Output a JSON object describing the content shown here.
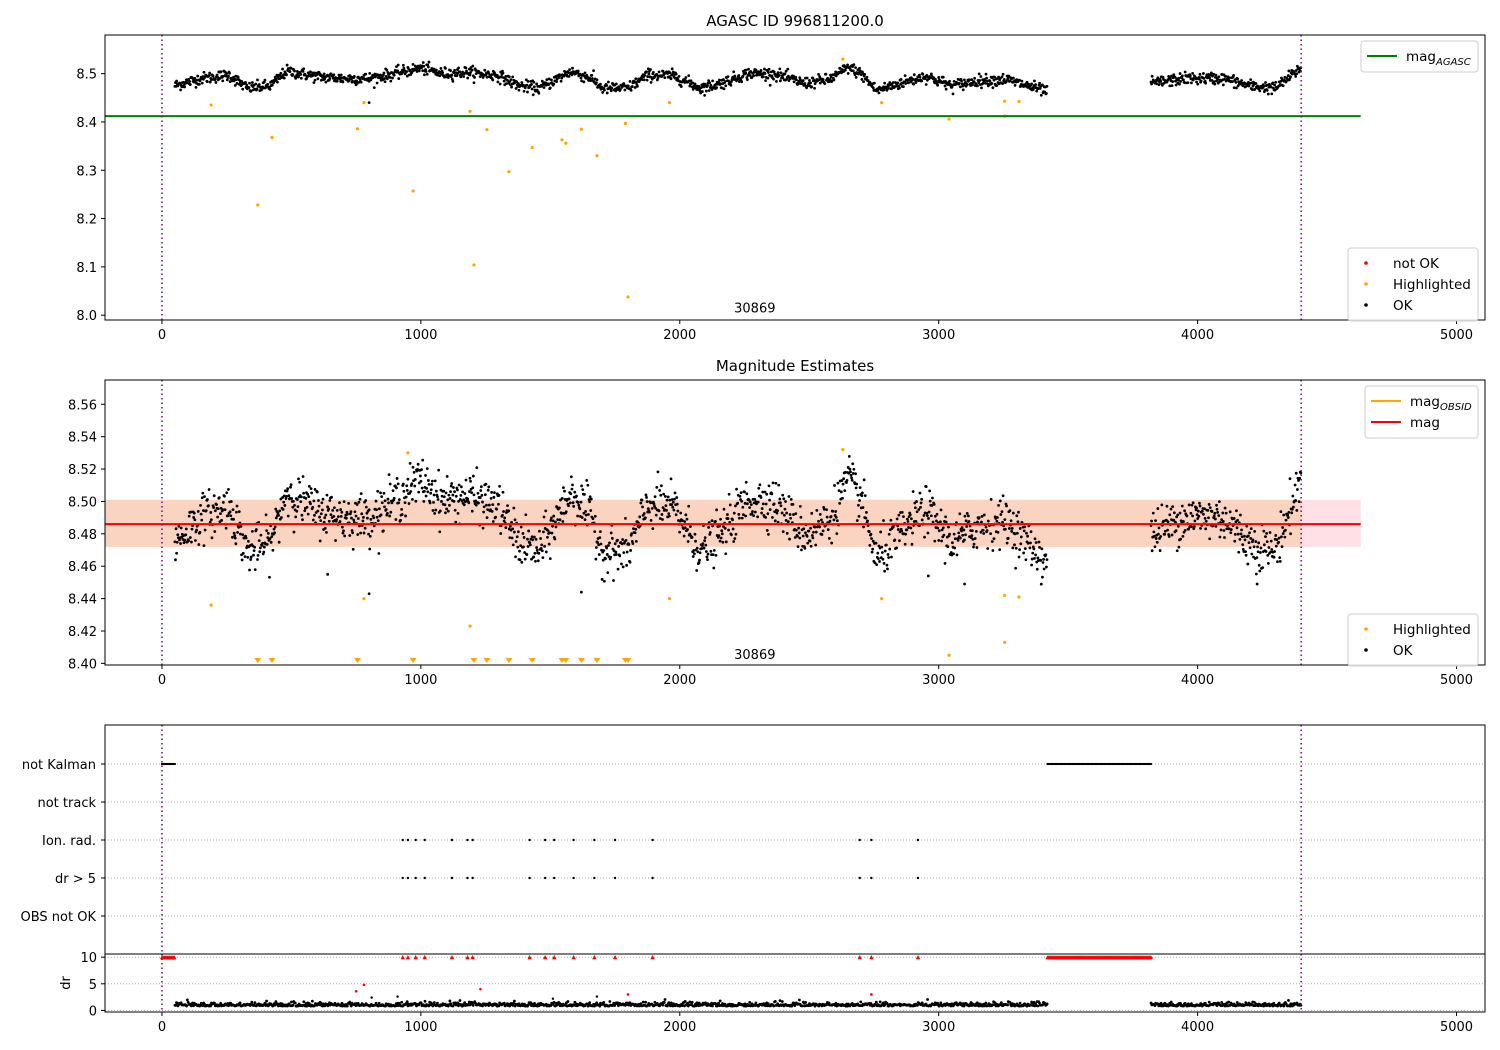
{
  "chart_data": [
    {
      "type": "scatter",
      "title": "AGASC ID 996811200.0",
      "xlim": [
        -220,
        5110
      ],
      "ylim": [
        7.99,
        8.58
      ],
      "xticks": [
        0,
        1000,
        2000,
        3000,
        4000,
        5000
      ],
      "xtick_labels": [
        "0",
        "1000",
        "2000",
        "3000",
        "4000",
        "5000"
      ],
      "yticks": [
        8.0,
        8.1,
        8.2,
        8.3,
        8.4,
        8.5
      ],
      "ytick_labels": [
        "8.0",
        "8.1",
        "8.2",
        "8.3",
        "8.4",
        "8.5"
      ],
      "annotation": {
        "text": "30869",
        "x": 2210,
        "y": 8.01
      },
      "vlines": [
        0,
        4400
      ],
      "hline": {
        "name": "mag_AGASC",
        "y": 8.412,
        "x_range": [
          -220,
          4630
        ],
        "color": "#008000"
      },
      "legend_upper": {
        "placement": "top-right",
        "entries": [
          {
            "label": "mag",
            "subscript": "AGASC",
            "color": "#008000",
            "kind": "line"
          }
        ]
      },
      "legend_lower": {
        "placement": "bottom-right",
        "entries": [
          {
            "label": "not OK",
            "color": "#ff0000",
            "kind": "dot"
          },
          {
            "label": "Highlighted",
            "color": "#ffa500",
            "kind": "dot"
          },
          {
            "label": "OK",
            "color": "#000000",
            "kind": "dot"
          }
        ]
      },
      "highlighted_points": [
        [
          190,
          8.435
        ],
        [
          370,
          8.228
        ],
        [
          425,
          8.368
        ],
        [
          755,
          8.386
        ],
        [
          780,
          8.44
        ],
        [
          970,
          8.257
        ],
        [
          1190,
          8.422
        ],
        [
          1205,
          8.104
        ],
        [
          1255,
          8.384
        ],
        [
          1340,
          8.297
        ],
        [
          1430,
          8.347
        ],
        [
          1545,
          8.363
        ],
        [
          1560,
          8.356
        ],
        [
          1620,
          8.385
        ],
        [
          1680,
          8.33
        ],
        [
          1790,
          8.397
        ],
        [
          1800,
          8.038
        ],
        [
          1960,
          8.44
        ],
        [
          2630,
          8.53
        ],
        [
          2780,
          8.44
        ],
        [
          3040,
          8.406
        ],
        [
          3255,
          8.443
        ],
        [
          3310,
          8.442
        ],
        [
          3255,
          8.412
        ]
      ],
      "ok_extra_points": [
        [
          800,
          8.44
        ]
      ],
      "ok_series": {
        "segments": [
          [
            50,
            3420
          ],
          [
            3820,
            4400
          ]
        ],
        "control_points": [
          [
            40,
            8.474
          ],
          [
            150,
            8.49
          ],
          [
            260,
            8.497
          ],
          [
            330,
            8.47
          ],
          [
            420,
            8.475
          ],
          [
            480,
            8.505
          ],
          [
            600,
            8.494
          ],
          [
            700,
            8.49
          ],
          [
            800,
            8.49
          ],
          [
            900,
            8.5
          ],
          [
            1000,
            8.512
          ],
          [
            1080,
            8.5
          ],
          [
            1180,
            8.503
          ],
          [
            1300,
            8.496
          ],
          [
            1380,
            8.475
          ],
          [
            1460,
            8.47
          ],
          [
            1580,
            8.505
          ],
          [
            1660,
            8.49
          ],
          [
            1700,
            8.47
          ],
          [
            1800,
            8.47
          ],
          [
            1880,
            8.498
          ],
          [
            1980,
            8.495
          ],
          [
            2080,
            8.47
          ],
          [
            2160,
            8.48
          ],
          [
            2260,
            8.5
          ],
          [
            2360,
            8.5
          ],
          [
            2480,
            8.48
          ],
          [
            2580,
            8.488
          ],
          [
            2650,
            8.513
          ],
          [
            2700,
            8.5
          ],
          [
            2760,
            8.465
          ],
          [
            2850,
            8.48
          ],
          [
            2950,
            8.495
          ],
          [
            3050,
            8.475
          ],
          [
            3150,
            8.485
          ],
          [
            3260,
            8.488
          ],
          [
            3420,
            8.463
          ],
          [
            3820,
            8.48
          ],
          [
            3950,
            8.49
          ],
          [
            4100,
            8.49
          ],
          [
            4200,
            8.475
          ],
          [
            4300,
            8.47
          ],
          [
            4400,
            8.512
          ]
        ],
        "noise": 0.006
      }
    },
    {
      "type": "scatter",
      "title": "Magnitude Estimates",
      "xlim": [
        -220,
        5110
      ],
      "ylim": [
        8.399,
        8.575
      ],
      "xticks": [
        0,
        1000,
        2000,
        3000,
        4000,
        5000
      ],
      "xtick_labels": [
        "0",
        "1000",
        "2000",
        "3000",
        "4000",
        "5000"
      ],
      "yticks": [
        8.4,
        8.42,
        8.44,
        8.46,
        8.48,
        8.5,
        8.52,
        8.54,
        8.56
      ],
      "ytick_labels": [
        "8.40",
        "8.42",
        "8.44",
        "8.46",
        "8.48",
        "8.50",
        "8.52",
        "8.54",
        "8.56"
      ],
      "annotation": {
        "text": "30869",
        "x": 2210,
        "y": 8.404
      },
      "vlines": [
        0,
        4400
      ],
      "mag_line": {
        "name": "mag",
        "y": 8.486,
        "color": "#ff0000"
      },
      "mag_band": {
        "y_range": [
          8.472,
          8.501
        ],
        "colors": [
          "#fbd3c1",
          "#ffe0e6"
        ]
      },
      "mag_obsid": {
        "name": "mag_OBSID",
        "y": 8.486,
        "x_range": [
          -220,
          4630
        ],
        "color": "#ffa500"
      },
      "legend_upper": {
        "placement": "top-right",
        "entries": [
          {
            "label": "mag",
            "subscript": "OBSID",
            "color": "#ffa500",
            "kind": "line"
          },
          {
            "label": "mag",
            "subscript": "",
            "color": "#ff0000",
            "kind": "line"
          }
        ]
      },
      "legend_lower": {
        "placement": "bottom-right",
        "entries": [
          {
            "label": "Highlighted",
            "color": "#ffa500",
            "kind": "dot"
          },
          {
            "label": "OK",
            "color": "#000000",
            "kind": "dot"
          }
        ]
      },
      "highlighted_points": [
        [
          190,
          8.436
        ],
        [
          780,
          8.44
        ],
        [
          950,
          8.53
        ],
        [
          1190,
          8.423
        ],
        [
          1960,
          8.44
        ],
        [
          2630,
          8.532
        ],
        [
          2780,
          8.44
        ],
        [
          3040,
          8.405
        ],
        [
          3255,
          8.442
        ],
        [
          3310,
          8.441
        ],
        [
          3255,
          8.413
        ]
      ],
      "lower_limit_markers_x": [
        370,
        425,
        755,
        970,
        1205,
        1255,
        1340,
        1430,
        1545,
        1560,
        1620,
        1680,
        1790,
        1800
      ],
      "ok_series": {
        "segments": [
          [
            50,
            3420
          ],
          [
            3820,
            4400
          ]
        ],
        "noise": 0.007,
        "outliers": [
          [
            640,
            8.455
          ],
          [
            800,
            8.443
          ],
          [
            1620,
            8.444
          ],
          [
            2960,
            8.454
          ],
          [
            3100,
            8.449
          ],
          [
            4230,
            8.449
          ]
        ]
      }
    },
    {
      "type": "scatter",
      "title": "",
      "xlim": [
        -220,
        5110
      ],
      "xticks": [
        0,
        1000,
        2000,
        3000,
        4000,
        5000
      ],
      "xtick_labels": [
        "0",
        "1000",
        "2000",
        "3000",
        "4000",
        "5000"
      ],
      "vlines": [
        0,
        4400
      ],
      "flag_rows": [
        "not Kalman",
        "not track",
        "Ion. rad.",
        "dr > 5",
        "OBS not OK"
      ],
      "flags": {
        "not Kalman": {
          "ranges": [
            [
              0,
              50
            ],
            [
              3420,
              3820
            ]
          ]
        },
        "not track": {
          "ranges": []
        },
        "Ion. rad.": {
          "points": [
            930,
            950,
            980,
            1015,
            1120,
            1180,
            1200,
            1420,
            1480,
            1515,
            1590,
            1670,
            1750,
            1895,
            2695,
            2740,
            2920
          ]
        },
        "dr > 5": {
          "points": [
            930,
            950,
            980,
            1015,
            1120,
            1180,
            1200,
            1420,
            1480,
            1515,
            1590,
            1670,
            1750,
            1895,
            2695,
            2740,
            2920
          ]
        },
        "OBS not OK": {
          "ranges": []
        }
      }
    },
    {
      "type": "scatter",
      "title": "",
      "xlim": [
        -220,
        5110
      ],
      "ylim": [
        -0.3,
        10.6
      ],
      "ylabel": "dr",
      "yticks": [
        0,
        5,
        10
      ],
      "ytick_labels": [
        "0",
        "5",
        "10"
      ],
      "xticks": [
        0,
        1000,
        2000,
        3000,
        4000,
        5000
      ],
      "xtick_labels": [
        "0",
        "1000",
        "2000",
        "3000",
        "4000",
        "5000"
      ],
      "vlines": [
        0,
        4400
      ],
      "not_ok_at_10": {
        "ranges": [
          [
            0,
            50
          ],
          [
            3420,
            3820
          ]
        ],
        "points": [
          930,
          950,
          980,
          1015,
          1120,
          1180,
          1200,
          1420,
          1480,
          1515,
          1590,
          1670,
          1750,
          1895,
          2695,
          2740,
          2920
        ]
      },
      "not_ok_points": [
        [
          750,
          3.6
        ],
        [
          780,
          4.8
        ],
        [
          1230,
          4.0
        ],
        [
          1800,
          3.0
        ],
        [
          2740,
          3.0
        ]
      ],
      "ok_series": {
        "segments": [
          [
            50,
            3420
          ],
          [
            3820,
            4400
          ]
        ],
        "level": 0.8
      },
      "ok_extra_points": [
        [
          810,
          2.4
        ],
        [
          910,
          2.6
        ],
        [
          1510,
          2.2
        ],
        [
          1680,
          2.6
        ]
      ]
    }
  ]
}
